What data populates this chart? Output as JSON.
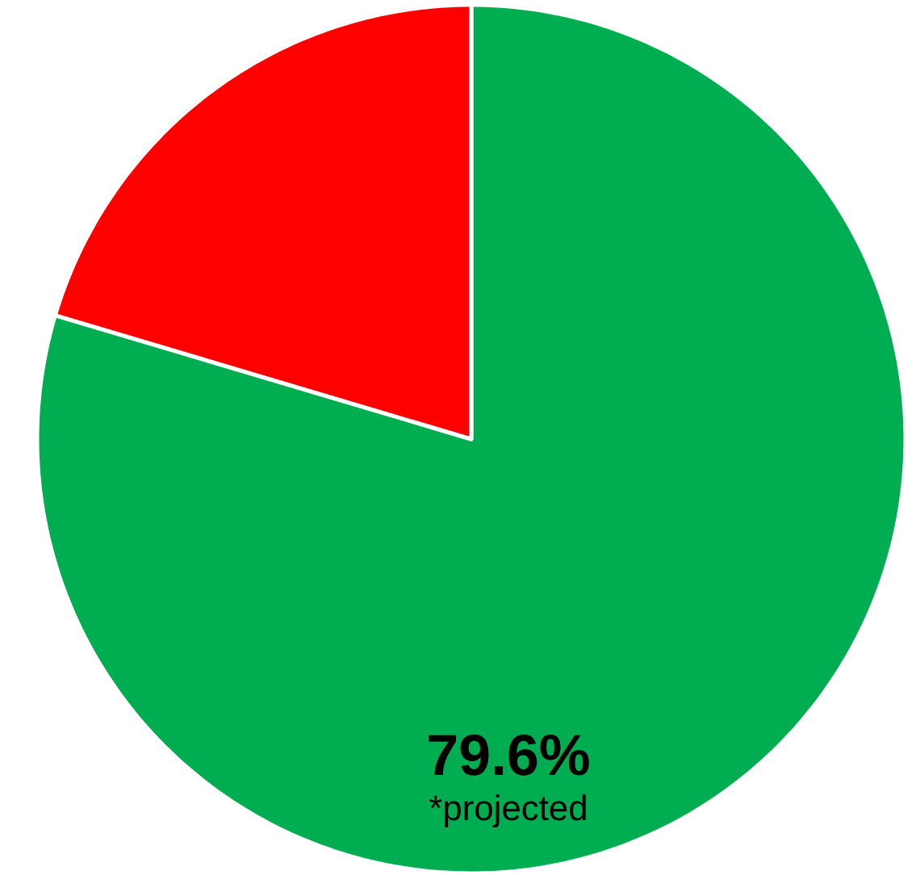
{
  "chart_data": {
    "type": "pie",
    "categories": [
      null,
      null
    ],
    "values": [
      79.6,
      20.4
    ],
    "colors": [
      "#00ad50",
      "#ff0000"
    ],
    "value_labels": [
      "79.6%",
      null
    ],
    "annotations": [
      "*projected"
    ]
  }
}
